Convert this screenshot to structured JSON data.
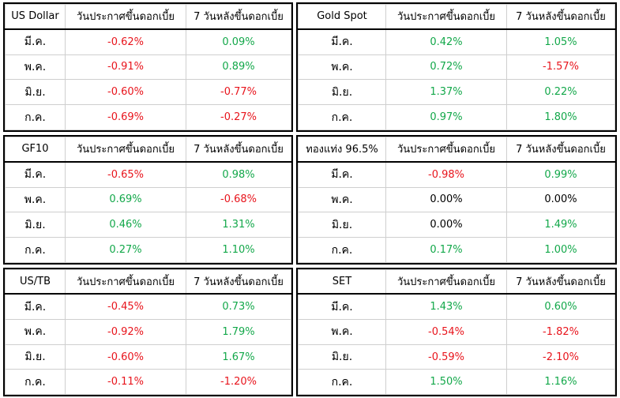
{
  "colors": {
    "negative": "#e8141c",
    "positive": "#13a84a",
    "neutral": "#000000"
  },
  "panels": [
    {
      "id": "us-dollar",
      "name": "US Dollar",
      "col1": "วันประกาศขึ้นดอกเบี้ย",
      "col2": "7 วันหลังขึ้นดอกเบี้ย",
      "rows": [
        {
          "label": "มี.ค.",
          "v1": "-0.62%",
          "s1": "neg",
          "v2": "0.09%",
          "s2": "pos"
        },
        {
          "label": "พ.ค.",
          "v1": "-0.91%",
          "s1": "neg",
          "v2": "0.89%",
          "s2": "pos"
        },
        {
          "label": "มิ.ย.",
          "v1": "-0.60%",
          "s1": "neg",
          "v2": "-0.77%",
          "s2": "neg"
        },
        {
          "label": "ก.ค.",
          "v1": "-0.69%",
          "s1": "neg",
          "v2": "-0.27%",
          "s2": "neg"
        }
      ]
    },
    {
      "id": "gold-spot",
      "name": "Gold Spot",
      "col1": "วันประกาศขึ้นดอกเบี้ย",
      "col2": "7 วันหลังขึ้นดอกเบี้ย",
      "rows": [
        {
          "label": "มี.ค.",
          "v1": "0.42%",
          "s1": "pos",
          "v2": "1.05%",
          "s2": "pos"
        },
        {
          "label": "พ.ค.",
          "v1": "0.72%",
          "s1": "pos",
          "v2": "-1.57%",
          "s2": "neg"
        },
        {
          "label": "มิ.ย.",
          "v1": "1.37%",
          "s1": "pos",
          "v2": "0.22%",
          "s2": "pos"
        },
        {
          "label": "ก.ค.",
          "v1": "0.97%",
          "s1": "pos",
          "v2": "1.80%",
          "s2": "pos"
        }
      ]
    },
    {
      "id": "gf10",
      "name": "GF10",
      "col1": "วันประกาศขึ้นดอกเบี้ย",
      "col2": "7 วันหลังขึ้นดอกเบี้ย",
      "rows": [
        {
          "label": "มี.ค.",
          "v1": "-0.65%",
          "s1": "neg",
          "v2": "0.98%",
          "s2": "pos"
        },
        {
          "label": "พ.ค.",
          "v1": "0.69%",
          "s1": "pos",
          "v2": "-0.68%",
          "s2": "neg"
        },
        {
          "label": "มิ.ย.",
          "v1": "0.46%",
          "s1": "pos",
          "v2": "1.31%",
          "s2": "pos"
        },
        {
          "label": "ก.ค.",
          "v1": "0.27%",
          "s1": "pos",
          "v2": "1.10%",
          "s2": "pos"
        }
      ]
    },
    {
      "id": "gold-bar",
      "name": "ทองแท่ง 96.5%",
      "col1": "วันประกาศขึ้นดอกเบี้ย",
      "col2": "7 วันหลังขึ้นดอกเบี้ย",
      "rows": [
        {
          "label": "มี.ค.",
          "v1": "-0.98%",
          "s1": "neg",
          "v2": "0.99%",
          "s2": "pos"
        },
        {
          "label": "พ.ค.",
          "v1": "0.00%",
          "s1": "neu",
          "v2": "0.00%",
          "s2": "neu"
        },
        {
          "label": "มิ.ย.",
          "v1": "0.00%",
          "s1": "neu",
          "v2": "1.49%",
          "s2": "pos"
        },
        {
          "label": "ก.ค.",
          "v1": "0.17%",
          "s1": "pos",
          "v2": "1.00%",
          "s2": "pos"
        }
      ]
    },
    {
      "id": "us-tb",
      "name": "US/TB",
      "col1": "วันประกาศขึ้นดอกเบี้ย",
      "col2": "7 วันหลังขึ้นดอกเบี้ย",
      "rows": [
        {
          "label": "มี.ค.",
          "v1": "-0.45%",
          "s1": "neg",
          "v2": "0.73%",
          "s2": "pos"
        },
        {
          "label": "พ.ค.",
          "v1": "-0.92%",
          "s1": "neg",
          "v2": "1.79%",
          "s2": "pos"
        },
        {
          "label": "มิ.ย.",
          "v1": "-0.60%",
          "s1": "neg",
          "v2": "1.67%",
          "s2": "pos"
        },
        {
          "label": "ก.ค.",
          "v1": "-0.11%",
          "s1": "neg",
          "v2": "-1.20%",
          "s2": "neg"
        }
      ]
    },
    {
      "id": "set",
      "name": "SET",
      "col1": "วันประกาศขึ้นดอกเบี้ย",
      "col2": "7 วันหลังขึ้นดอกเบี้ย",
      "rows": [
        {
          "label": "มี.ค.",
          "v1": "1.43%",
          "s1": "pos",
          "v2": "0.60%",
          "s2": "pos"
        },
        {
          "label": "พ.ค.",
          "v1": "-0.54%",
          "s1": "neg",
          "v2": "-1.82%",
          "s2": "neg"
        },
        {
          "label": "มิ.ย.",
          "v1": "-0.59%",
          "s1": "neg",
          "v2": "-2.10%",
          "s2": "neg"
        },
        {
          "label": "ก.ค.",
          "v1": "1.50%",
          "s1": "pos",
          "v2": "1.16%",
          "s2": "pos"
        }
      ]
    }
  ]
}
